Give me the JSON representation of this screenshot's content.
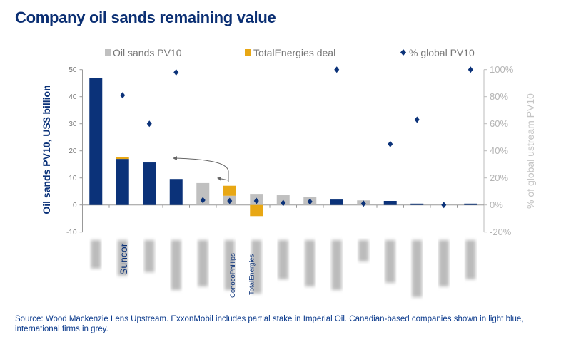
{
  "title": "Company oil sands remaining value",
  "footer": "Source: Wood Mackenzie Lens Upstream. ExxonMobil includes partial stake in Imperial Oil. Canadian-based companies shown in light blue, international firms in grey.",
  "chart_data": {
    "type": "bar",
    "title": "Company oil sands remaining value",
    "ylabel": "Oil sands PV10, US$ billion",
    "y2label": "% of global ustream PV10",
    "ylim": [
      -10,
      50
    ],
    "yticks": [
      "-10",
      "0",
      "10",
      "20",
      "30",
      "40",
      "50"
    ],
    "y2lim": [
      -20,
      100
    ],
    "y2ticks": [
      "-20%",
      "0%",
      "20%",
      "40%",
      "60%",
      "80%",
      "100%"
    ],
    "legend_position": "top",
    "legend": [
      "Oil sands PV10",
      "TotalEnergies deal",
      "% global PV10"
    ],
    "grid": false,
    "categories": [
      null,
      "Suncor",
      null,
      null,
      null,
      "ConocoPhillips",
      "TotalEnergies",
      null,
      null,
      null,
      null,
      null,
      null,
      null,
      null
    ],
    "series": [
      {
        "name": "Oil sands PV10",
        "type": "bar",
        "values": [
          47,
          17,
          15.7,
          9.6,
          8.1,
          3.4,
          4.1,
          3.6,
          3.0,
          2.0,
          1.7,
          1.5,
          0.5,
          0.4,
          0.5
        ],
        "colors": [
          "#0b3279",
          "#0b3279",
          "#0b3279",
          "#0b3279",
          "#c0c0c0",
          "#c0c0c0",
          "#c0c0c0",
          "#c0c0c0",
          "#c0c0c0",
          "#0b3279",
          "#c0c0c0",
          "#0b3279",
          "#0b3279",
          "#c0c0c0",
          "#0b3279"
        ]
      },
      {
        "name": "TotalEnergies deal",
        "type": "stacked-bar",
        "color": "#e8a714",
        "values": [
          0,
          0.6,
          0,
          0,
          0,
          3.7,
          -4.1,
          0,
          0,
          0,
          0,
          0,
          0,
          0,
          0
        ]
      },
      {
        "name": "% global PV10",
        "type": "scatter",
        "axis": "right",
        "color": "#0b3279",
        "values": [
          null,
          81,
          60,
          98,
          3.5,
          3,
          3,
          1.5,
          2.5,
          100,
          1,
          45,
          63,
          0,
          100
        ]
      }
    ]
  }
}
